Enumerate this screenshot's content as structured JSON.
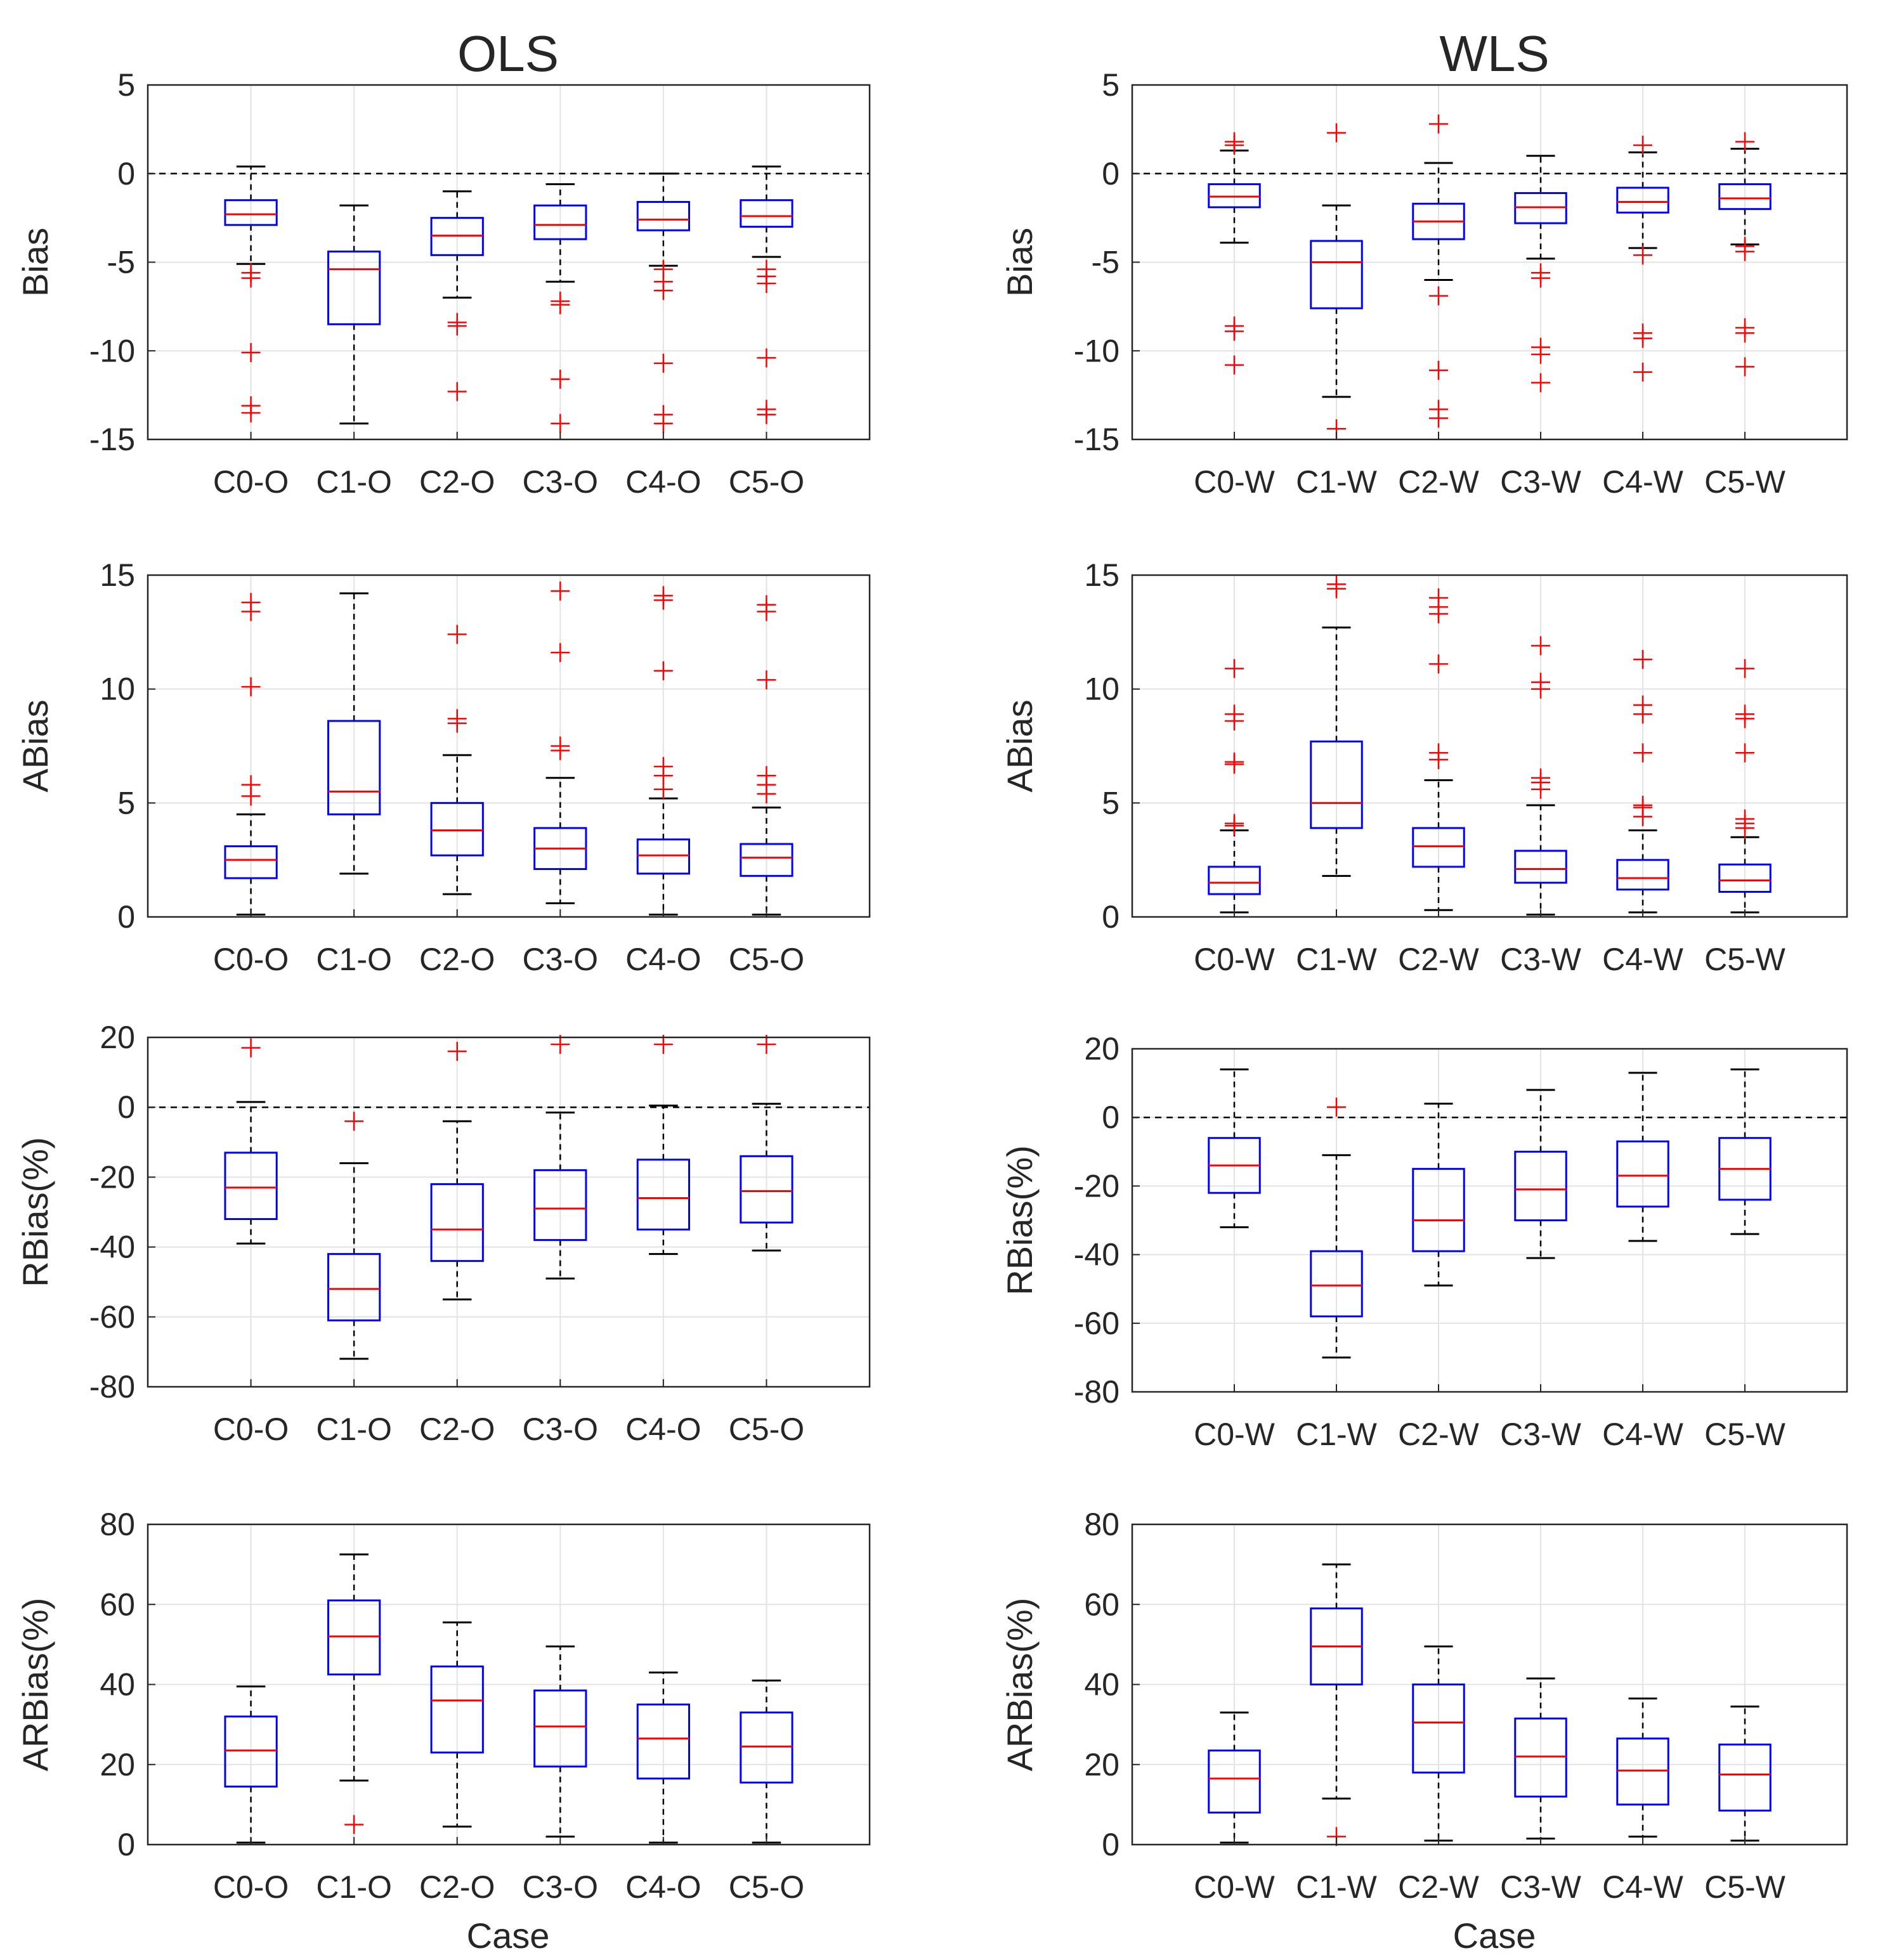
{
  "figure": {
    "column_titles": [
      "OLS",
      "WLS"
    ],
    "x_axis_title": "Case"
  },
  "colors": {
    "box": "#0000ff",
    "median": "#ff0000",
    "outlier": "#ff0000",
    "whisker": "#000000",
    "grid": "#e3e3e3",
    "axis": "#262626"
  },
  "chart_data": [
    {
      "id": "ols-bias",
      "type": "box",
      "column": "OLS",
      "ylabel": "Bias",
      "ylim": [
        -15,
        5
      ],
      "yticks": [
        5,
        0,
        -5,
        -10,
        -15
      ],
      "zero_line": true,
      "categories": [
        "C0-O",
        "C1-O",
        "C2-O",
        "C3-O",
        "C4-O",
        "C5-O"
      ],
      "boxes": [
        {
          "min": -5.1,
          "q1": -2.9,
          "median": -2.3,
          "q3": -1.5,
          "max": 0.4,
          "outliers": [
            -5.6,
            -5.9,
            -10.1,
            -13.1,
            -13.5
          ]
        },
        {
          "min": -14.1,
          "q1": -8.5,
          "median": -5.4,
          "q3": -4.4,
          "max": -1.8,
          "outliers": []
        },
        {
          "min": -7.0,
          "q1": -4.6,
          "median": -3.5,
          "q3": -2.5,
          "max": -1.0,
          "outliers": [
            -8.4,
            -8.6,
            -12.3
          ]
        },
        {
          "min": -6.1,
          "q1": -3.7,
          "median": -2.9,
          "q3": -1.8,
          "max": -0.6,
          "outliers": [
            -7.2,
            -7.4,
            -11.6,
            -14.1
          ]
        },
        {
          "min": -5.2,
          "q1": -3.2,
          "median": -2.6,
          "q3": -1.6,
          "max": 0.0,
          "outliers": [
            -5.4,
            -6.1,
            -6.6,
            -10.7,
            -13.6,
            -14.1
          ]
        },
        {
          "min": -4.7,
          "q1": -3.0,
          "median": -2.4,
          "q3": -1.5,
          "max": 0.4,
          "outliers": [
            -5.4,
            -5.8,
            -6.2,
            -10.4,
            -13.3,
            -13.6
          ]
        }
      ]
    },
    {
      "id": "wls-bias",
      "type": "box",
      "column": "WLS",
      "ylabel": "Bias",
      "ylim": [
        -15,
        5
      ],
      "yticks": [
        5,
        0,
        -5,
        -10,
        -15
      ],
      "zero_line": true,
      "categories": [
        "C0-W",
        "C1-W",
        "C2-W",
        "C3-W",
        "C4-W",
        "C5-W"
      ],
      "boxes": [
        {
          "min": -3.9,
          "q1": -1.9,
          "median": -1.3,
          "q3": -0.6,
          "max": 1.3,
          "outliers": [
            1.6,
            1.8,
            -8.6,
            -8.9,
            -10.8
          ]
        },
        {
          "min": -12.6,
          "q1": -7.6,
          "median": -5.0,
          "q3": -3.8,
          "max": -1.8,
          "outliers": [
            2.3,
            -14.4
          ]
        },
        {
          "min": -6.0,
          "q1": -3.7,
          "median": -2.7,
          "q3": -1.7,
          "max": 0.6,
          "outliers": [
            2.8,
            -6.9,
            -11.1,
            -13.3,
            -13.8
          ]
        },
        {
          "min": -4.8,
          "q1": -2.8,
          "median": -1.9,
          "q3": -1.1,
          "max": 1.0,
          "outliers": [
            -5.6,
            -5.9,
            -9.8,
            -10.2,
            -11.8
          ]
        },
        {
          "min": -4.2,
          "q1": -2.2,
          "median": -1.6,
          "q3": -0.8,
          "max": 1.2,
          "outliers": [
            1.6,
            -4.6,
            -9.0,
            -9.3,
            -11.2
          ]
        },
        {
          "min": -4.0,
          "q1": -2.0,
          "median": -1.4,
          "q3": -0.6,
          "max": 1.4,
          "outliers": [
            1.8,
            -4.1,
            -4.4,
            -8.7,
            -9.0,
            -10.9
          ]
        }
      ]
    },
    {
      "id": "ols-abias",
      "type": "box",
      "column": "OLS",
      "ylabel": "ABias",
      "ylim": [
        0,
        15
      ],
      "yticks": [
        15,
        10,
        5,
        0
      ],
      "zero_line": false,
      "categories": [
        "C0-O",
        "C1-O",
        "C2-O",
        "C3-O",
        "C4-O",
        "C5-O"
      ],
      "boxes": [
        {
          "min": 0.1,
          "q1": 1.7,
          "median": 2.5,
          "q3": 3.1,
          "max": 4.5,
          "outliers": [
            5.3,
            5.8,
            10.1,
            13.4,
            13.8
          ]
        },
        {
          "min": 1.9,
          "q1": 4.5,
          "median": 5.5,
          "q3": 8.6,
          "max": 14.2,
          "outliers": []
        },
        {
          "min": 1.0,
          "q1": 2.7,
          "median": 3.8,
          "q3": 5.0,
          "max": 7.1,
          "outliers": [
            8.5,
            8.7,
            12.4
          ]
        },
        {
          "min": 0.6,
          "q1": 2.1,
          "median": 3.0,
          "q3": 3.9,
          "max": 6.1,
          "outliers": [
            7.3,
            7.5,
            11.6,
            14.3
          ]
        },
        {
          "min": 0.1,
          "q1": 1.9,
          "median": 2.7,
          "q3": 3.4,
          "max": 5.2,
          "outliers": [
            5.6,
            6.2,
            6.6,
            10.8,
            13.9,
            14.1
          ]
        },
        {
          "min": 0.1,
          "q1": 1.8,
          "median": 2.6,
          "q3": 3.2,
          "max": 4.8,
          "outliers": [
            5.4,
            5.8,
            6.2,
            10.4,
            13.4,
            13.7
          ]
        }
      ]
    },
    {
      "id": "wls-abias",
      "type": "box",
      "column": "WLS",
      "ylabel": "ABias",
      "ylim": [
        0,
        15
      ],
      "yticks": [
        15,
        10,
        5,
        0
      ],
      "zero_line": false,
      "categories": [
        "C0-W",
        "C1-W",
        "C2-W",
        "C3-W",
        "C4-W",
        "C5-W"
      ],
      "boxes": [
        {
          "min": 0.2,
          "q1": 1.0,
          "median": 1.5,
          "q3": 2.2,
          "max": 3.8,
          "outliers": [
            4.0,
            4.1,
            6.7,
            6.8,
            8.6,
            8.9,
            10.9
          ]
        },
        {
          "min": 1.8,
          "q1": 3.9,
          "median": 5.0,
          "q3": 7.7,
          "max": 12.7,
          "outliers": [
            14.4,
            14.6
          ]
        },
        {
          "min": 0.3,
          "q1": 2.2,
          "median": 3.1,
          "q3": 3.9,
          "max": 6.0,
          "outliers": [
            6.9,
            7.2,
            11.1,
            13.3,
            13.6,
            14.0
          ]
        },
        {
          "min": 0.1,
          "q1": 1.5,
          "median": 2.1,
          "q3": 2.9,
          "max": 4.9,
          "outliers": [
            5.6,
            5.9,
            6.1,
            10.0,
            10.3,
            11.9
          ]
        },
        {
          "min": 0.2,
          "q1": 1.2,
          "median": 1.7,
          "q3": 2.5,
          "max": 3.8,
          "outliers": [
            4.4,
            4.8,
            4.9,
            7.2,
            8.9,
            9.3,
            11.3
          ]
        },
        {
          "min": 0.2,
          "q1": 1.1,
          "median": 1.6,
          "q3": 2.3,
          "max": 3.5,
          "outliers": [
            3.9,
            4.1,
            4.3,
            7.2,
            8.7,
            8.9,
            10.9
          ]
        }
      ]
    },
    {
      "id": "ols-rbias",
      "type": "box",
      "column": "OLS",
      "ylabel": "RBias(%)",
      "ylim": [
        -80,
        20
      ],
      "yticks": [
        20,
        0,
        -20,
        -40,
        -60,
        -80
      ],
      "zero_line": true,
      "categories": [
        "C0-O",
        "C1-O",
        "C2-O",
        "C3-O",
        "C4-O",
        "C5-O"
      ],
      "boxes": [
        {
          "min": -39,
          "q1": -32,
          "median": -23,
          "q3": -13,
          "max": 1.5,
          "outliers": [
            17
          ]
        },
        {
          "min": -72,
          "q1": -61,
          "median": -52,
          "q3": -42,
          "max": -16,
          "outliers": [
            -4
          ]
        },
        {
          "min": -55,
          "q1": -44,
          "median": -35,
          "q3": -22,
          "max": -4,
          "outliers": [
            16
          ]
        },
        {
          "min": -49,
          "q1": -38,
          "median": -29,
          "q3": -18,
          "max": -1.5,
          "outliers": [
            18
          ]
        },
        {
          "min": -42,
          "q1": -35,
          "median": -26,
          "q3": -15,
          "max": 0.5,
          "outliers": [
            18
          ]
        },
        {
          "min": -41,
          "q1": -33,
          "median": -24,
          "q3": -14,
          "max": 1,
          "outliers": [
            18
          ]
        }
      ]
    },
    {
      "id": "wls-rbias",
      "type": "box",
      "column": "WLS",
      "ylabel": "RBias(%)",
      "ylim": [
        -80,
        20
      ],
      "yticks": [
        20,
        0,
        -20,
        -40,
        -60,
        -80
      ],
      "zero_line": true,
      "categories": [
        "C0-W",
        "C1-W",
        "C2-W",
        "C3-W",
        "C4-W",
        "C5-W"
      ],
      "boxes": [
        {
          "min": -32,
          "q1": -22,
          "median": -14,
          "q3": -6,
          "max": 14,
          "outliers": []
        },
        {
          "min": -70,
          "q1": -58,
          "median": -49,
          "q3": -39,
          "max": -11,
          "outliers": [
            3
          ]
        },
        {
          "min": -49,
          "q1": -39,
          "median": -30,
          "q3": -15,
          "max": 4,
          "outliers": []
        },
        {
          "min": -41,
          "q1": -30,
          "median": -21,
          "q3": -10,
          "max": 8,
          "outliers": []
        },
        {
          "min": -36,
          "q1": -26,
          "median": -17,
          "q3": -7,
          "max": 13,
          "outliers": []
        },
        {
          "min": -34,
          "q1": -24,
          "median": -15,
          "q3": -6,
          "max": 14,
          "outliers": []
        }
      ]
    },
    {
      "id": "ols-arbias",
      "type": "box",
      "column": "OLS",
      "ylabel": "ARBias(%)",
      "ylim": [
        0,
        80
      ],
      "yticks": [
        80,
        60,
        40,
        20,
        0
      ],
      "zero_line": false,
      "categories": [
        "C0-O",
        "C1-O",
        "C2-O",
        "C3-O",
        "C4-O",
        "C5-O"
      ],
      "boxes": [
        {
          "min": 0.5,
          "q1": 14.5,
          "median": 23.5,
          "q3": 32,
          "max": 39.5,
          "outliers": []
        },
        {
          "min": 16,
          "q1": 42.5,
          "median": 52,
          "q3": 61,
          "max": 72.5,
          "outliers": [
            5
          ]
        },
        {
          "min": 4.5,
          "q1": 23,
          "median": 36,
          "q3": 44.5,
          "max": 55.5,
          "outliers": []
        },
        {
          "min": 2,
          "q1": 19.5,
          "median": 29.5,
          "q3": 38.5,
          "max": 49.5,
          "outliers": []
        },
        {
          "min": 0.5,
          "q1": 16.5,
          "median": 26.5,
          "q3": 35,
          "max": 43,
          "outliers": []
        },
        {
          "min": 0.5,
          "q1": 15.5,
          "median": 24.5,
          "q3": 33,
          "max": 41,
          "outliers": []
        }
      ]
    },
    {
      "id": "wls-arbias",
      "type": "box",
      "column": "WLS",
      "ylabel": "ARBias(%)",
      "ylim": [
        0,
        80
      ],
      "yticks": [
        80,
        60,
        40,
        20,
        0
      ],
      "zero_line": false,
      "categories": [
        "C0-W",
        "C1-W",
        "C2-W",
        "C3-W",
        "C4-W",
        "C5-W"
      ],
      "boxes": [
        {
          "min": 0.5,
          "q1": 8,
          "median": 16.5,
          "q3": 23.5,
          "max": 33,
          "outliers": []
        },
        {
          "min": 11.5,
          "q1": 40,
          "median": 49.5,
          "q3": 59,
          "max": 70,
          "outliers": [
            2
          ]
        },
        {
          "min": 1,
          "q1": 18,
          "median": 30.5,
          "q3": 40,
          "max": 49.5,
          "outliers": []
        },
        {
          "min": 1.5,
          "q1": 12,
          "median": 22,
          "q3": 31.5,
          "max": 41.5,
          "outliers": []
        },
        {
          "min": 2,
          "q1": 10,
          "median": 18.5,
          "q3": 26.5,
          "max": 36.5,
          "outliers": []
        },
        {
          "min": 1,
          "q1": 8.5,
          "median": 17.5,
          "q3": 25,
          "max": 34.5,
          "outliers": []
        }
      ]
    }
  ]
}
